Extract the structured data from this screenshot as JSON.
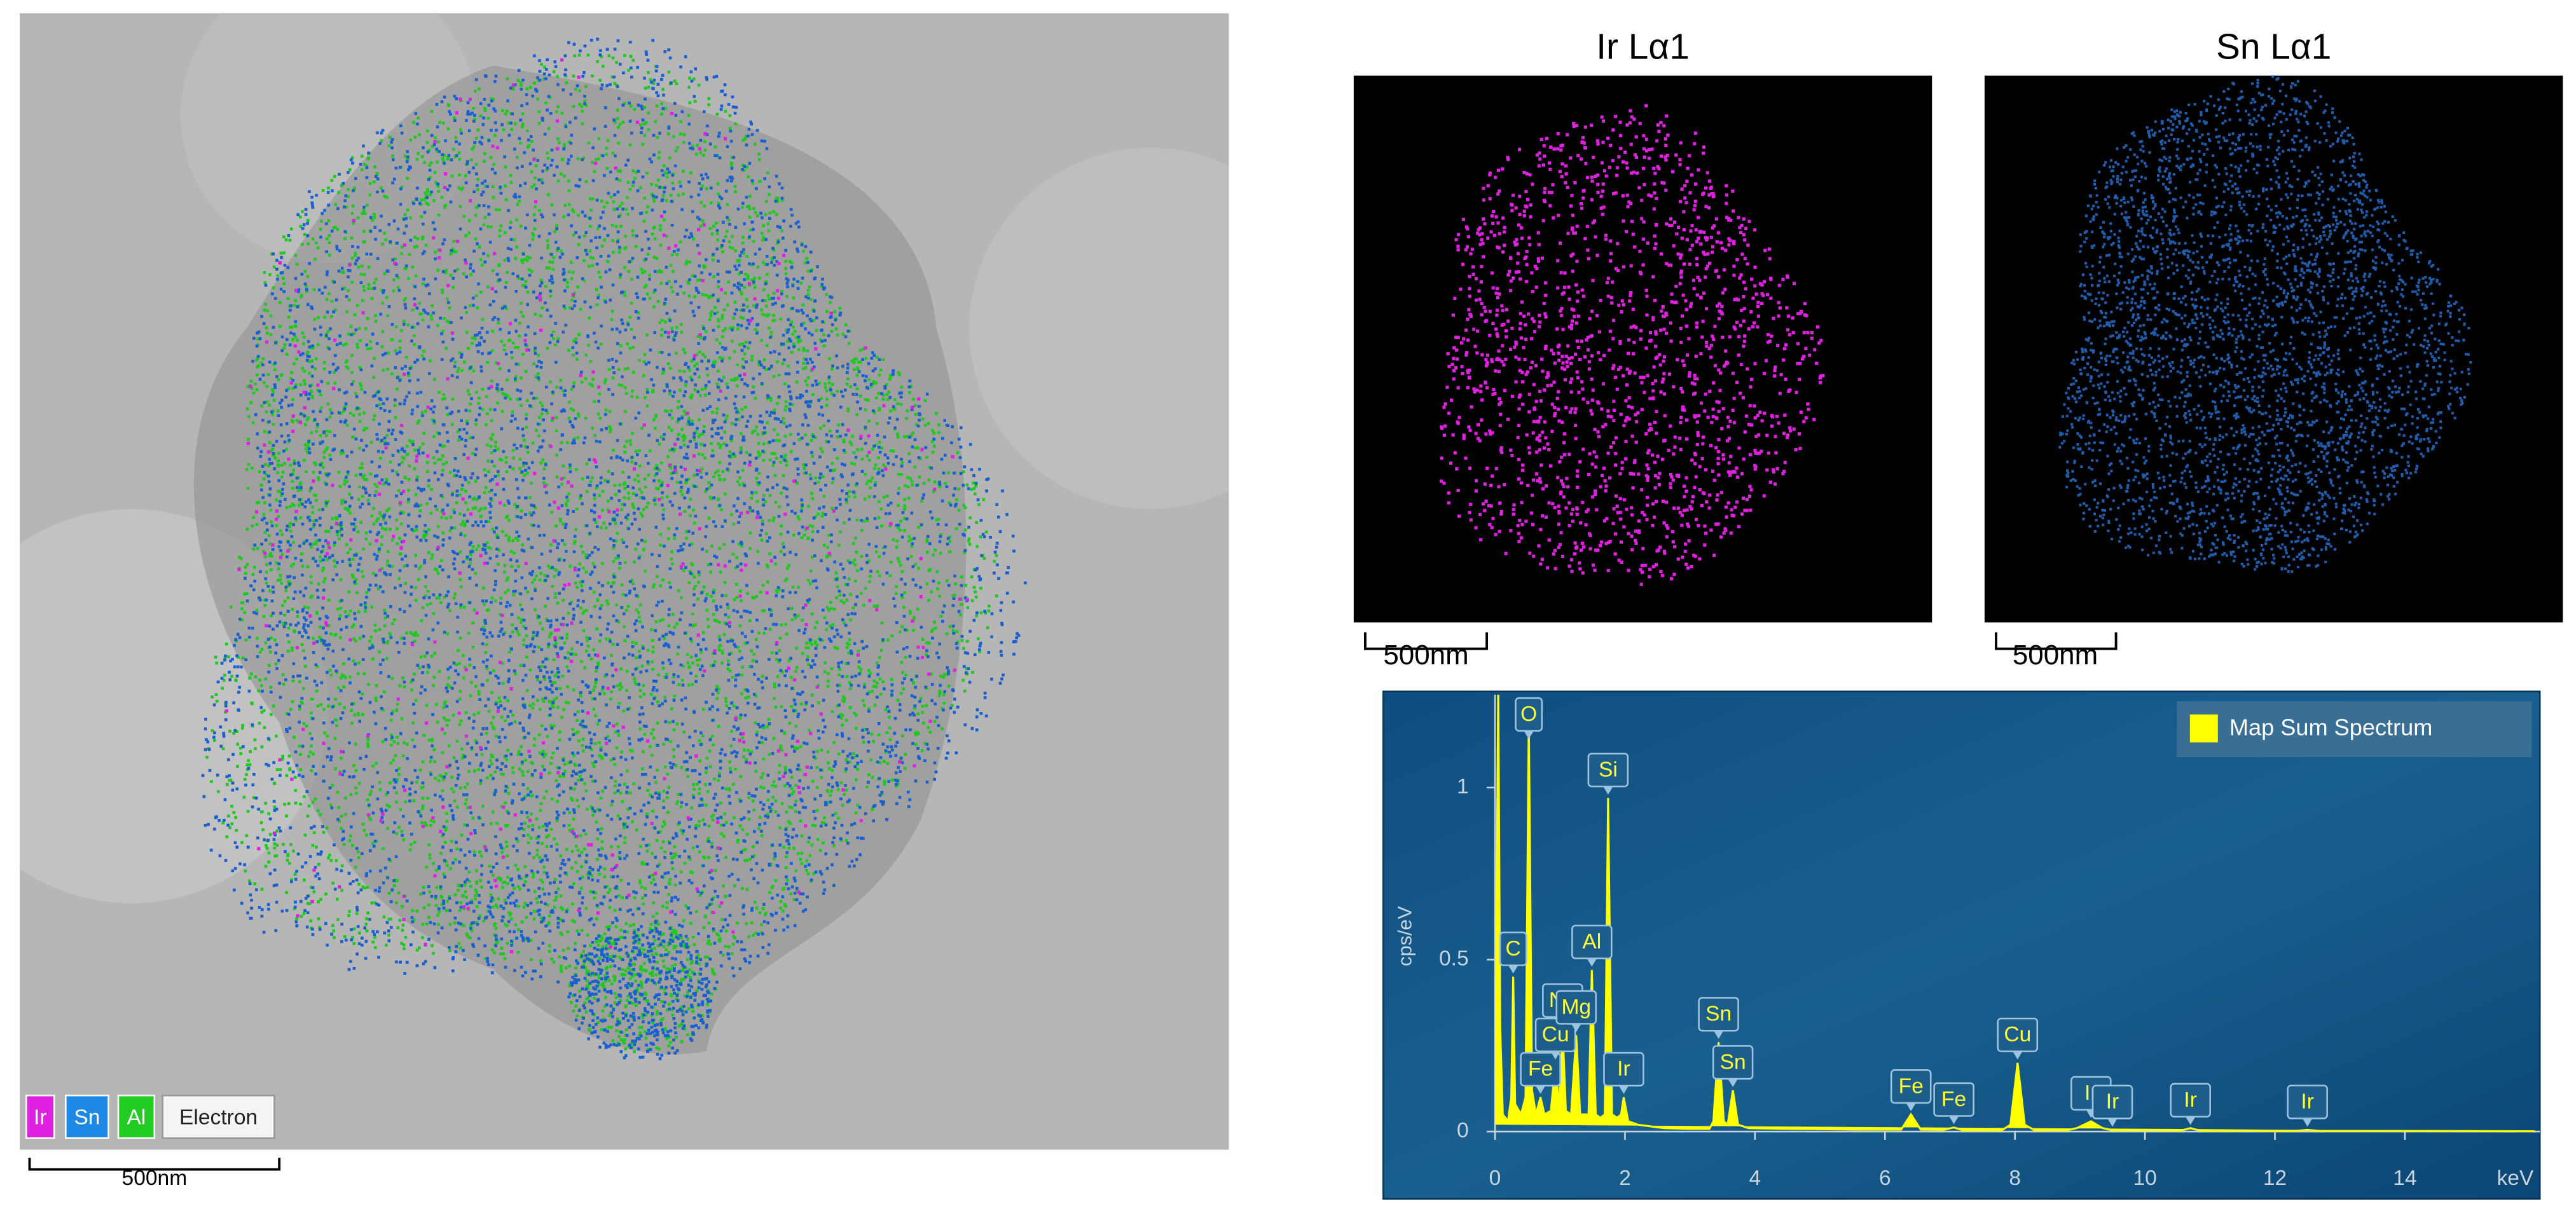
{
  "figure": {
    "composite": {
      "legend": [
        "Ir",
        "Sn",
        "Al",
        "Electron"
      ],
      "scale_bar": "500nm"
    },
    "maps": [
      {
        "title": "Ir Lα1",
        "scale_bar": "500nm"
      },
      {
        "title": "Sn Lα1",
        "scale_bar": "500nm"
      }
    ]
  },
  "chart_data": {
    "type": "line",
    "xlabel": "keV",
    "ylabel": "cps/eV",
    "x": [
      0,
      0.05,
      0.08,
      0.12,
      0.2,
      0.25,
      0.28,
      0.31,
      0.4,
      0.47,
      0.52,
      0.57,
      0.63,
      0.7,
      0.76,
      0.86,
      0.93,
      0.99,
      1.04,
      1.09,
      1.17,
      1.25,
      1.31,
      1.38,
      1.44,
      1.49,
      1.55,
      1.62,
      1.69,
      1.74,
      1.8,
      1.88,
      1.94,
      1.98,
      2.05,
      2.2,
      2.6,
      3.0,
      3.3,
      3.36,
      3.44,
      3.52,
      3.58,
      3.66,
      3.74,
      3.9,
      4.5,
      5.5,
      6.25,
      6.4,
      6.55,
      6.9,
      7.06,
      7.2,
      7.8,
      7.93,
      8.04,
      8.15,
      8.3,
      8.8,
      8.95,
      9.17,
      9.35,
      9.5,
      10.2,
      10.55,
      10.7,
      10.85,
      12.3,
      12.5,
      12.7,
      14,
      16
    ],
    "series": [
      {
        "name": "Map Sum Spectrum",
        "color": "#ffff00",
        "values": [
          0.02,
          1.3,
          0.3,
          0.05,
          0.03,
          0.1,
          0.45,
          0.08,
          0.05,
          0.1,
          1.2,
          0.12,
          0.05,
          0.1,
          0.05,
          0.06,
          0.2,
          0.06,
          0.3,
          0.06,
          0.05,
          0.28,
          0.05,
          0.05,
          0.05,
          0.47,
          0.05,
          0.04,
          0.05,
          0.97,
          0.05,
          0.04,
          0.05,
          0.1,
          0.03,
          0.02,
          0.01,
          0.008,
          0.008,
          0.03,
          0.26,
          0.03,
          0.02,
          0.12,
          0.02,
          0.01,
          0.008,
          0.006,
          0.006,
          0.05,
          0.006,
          0.005,
          0.012,
          0.004,
          0.004,
          0.02,
          0.2,
          0.02,
          0.004,
          0.004,
          0.01,
          0.03,
          0.01,
          0.004,
          0.004,
          0.003,
          0.01,
          0.003,
          0.002,
          0.005,
          0.002,
          0.002,
          0.001
        ]
      }
    ],
    "xlim": [
      0,
      16
    ],
    "ylim": [
      0,
      1.27
    ],
    "xticks": [
      0,
      2,
      4,
      6,
      8,
      10,
      12,
      14
    ],
    "yticks": [
      0,
      0.5,
      1
    ],
    "legend": "upper right",
    "peak_labels": [
      {
        "label": "C",
        "x": 0.28
      },
      {
        "label": "O",
        "x": 0.52
      },
      {
        "label": "Fe",
        "x": 0.7
      },
      {
        "label": "Cu",
        "x": 0.93
      },
      {
        "label": "Na",
        "x": 1.04
      },
      {
        "label": "Mg",
        "x": 1.25
      },
      {
        "label": "Al",
        "x": 1.49
      },
      {
        "label": "Si",
        "x": 1.74
      },
      {
        "label": "Ir",
        "x": 1.98
      },
      {
        "label": "Sn",
        "x": 3.44
      },
      {
        "label": "Sn",
        "x": 3.66
      },
      {
        "label": "Fe",
        "x": 6.4
      },
      {
        "label": "Fe",
        "x": 7.06
      },
      {
        "label": "Cu",
        "x": 8.04
      },
      {
        "label": "Ir",
        "x": 9.17
      },
      {
        "label": "Ir",
        "x": 9.5
      },
      {
        "label": "Ir",
        "x": 10.7
      },
      {
        "label": "Ir",
        "x": 12.5
      }
    ]
  }
}
